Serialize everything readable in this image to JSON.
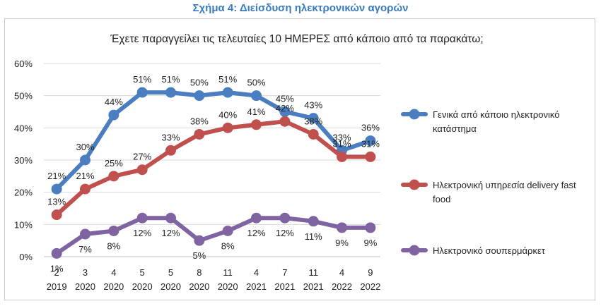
{
  "caption": "Σχήμα 4: Διείσδυση ηλεκτρονικών αγορών",
  "chart_data": {
    "type": "line",
    "title": "Έχετε παραγγείλει τις τελευταίες 10 ΗΜΕΡΕΣ από κάποιο από τα παρακάτω;",
    "xlabel": "",
    "ylabel": "",
    "ylim": [
      0,
      60
    ],
    "yticks": [
      "0%",
      "10%",
      "20%",
      "30%",
      "40%",
      "50%",
      "60%"
    ],
    "categories": [
      {
        "top": "2",
        "bottom": "2019"
      },
      {
        "top": "3",
        "bottom": "2020"
      },
      {
        "top": "4",
        "bottom": "2020"
      },
      {
        "top": "5",
        "bottom": "2020"
      },
      {
        "top": "5",
        "bottom": "2020"
      },
      {
        "top": "8",
        "bottom": "2020"
      },
      {
        "top": "11",
        "bottom": "2020"
      },
      {
        "top": "4",
        "bottom": "2021"
      },
      {
        "top": "7",
        "bottom": "2021"
      },
      {
        "top": "11",
        "bottom": "2021"
      },
      {
        "top": "4",
        "bottom": "2022"
      },
      {
        "top": "9",
        "bottom": "2022"
      }
    ],
    "grid": true,
    "legend_position": "right",
    "series": [
      {
        "name": "Γενικά από κάποιο ηλεκτρονικό κατάστημα",
        "legend_lines": [
          "Γενικά από κάποιο ηλεκτρονικό",
          "κατάστημα"
        ],
        "color": "#4a7ec1",
        "values": [
          21,
          30,
          44,
          51,
          51,
          50,
          51,
          50,
          45,
          43,
          33,
          36
        ],
        "labels": [
          "21%",
          "30%",
          "44%",
          "51%",
          "51%",
          "50%",
          "51%",
          "50%",
          "45%",
          "43%",
          "33%",
          "36%"
        ]
      },
      {
        "name": "Ηλεκτρονική υπηρεσία delivery fast food",
        "legend_lines": [
          "Ηλεκτρονική υπηρεσία delivery fast",
          "food"
        ],
        "color": "#c0504d",
        "values": [
          13,
          21,
          25,
          27,
          33,
          38,
          40,
          41,
          42,
          38,
          31,
          31
        ],
        "labels": [
          "13%",
          "21%",
          "25%",
          "27%",
          "33%",
          "38%",
          "40%",
          "41%",
          "42%",
          "38%",
          "31%",
          "31%"
        ]
      },
      {
        "name": "Ηλεκτρονικό σουπερμάρκετ",
        "legend_lines": [
          "Ηλεκτρονικό σουπερμάρκετ"
        ],
        "color": "#8064a2",
        "values": [
          1,
          7,
          8,
          12,
          12,
          5,
          8,
          12,
          12,
          11,
          9,
          9
        ],
        "labels": [
          "1%",
          "7%",
          "8%",
          "12%",
          "12%",
          "5%",
          "8%",
          "12%",
          "12%",
          "11%",
          "9%",
          "9%"
        ]
      }
    ]
  }
}
